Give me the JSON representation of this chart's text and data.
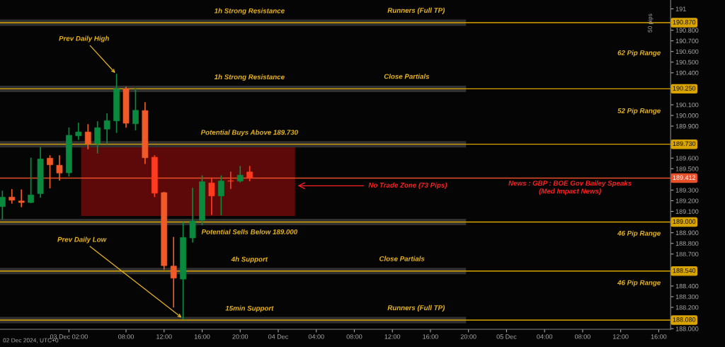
{
  "chart_data": {
    "type": "candlestick",
    "x": [
      "2024-12-02T19:00",
      "2024-12-02T20:00",
      "2024-12-02T21:00",
      "2024-12-02T22:00",
      "2024-12-02T23:00",
      "2024-12-03T00:00",
      "2024-12-03T01:00",
      "2024-12-03T02:00",
      "2024-12-03T03:00",
      "2024-12-03T04:00",
      "2024-12-03T05:00",
      "2024-12-03T06:00",
      "2024-12-03T07:00",
      "2024-12-03T08:00",
      "2024-12-03T09:00",
      "2024-12-03T10:00",
      "2024-12-03T11:00",
      "2024-12-03T12:00",
      "2024-12-03T13:00",
      "2024-12-03T14:00",
      "2024-12-03T15:00",
      "2024-12-03T16:00",
      "2024-12-03T17:00",
      "2024-12-03T18:00",
      "2024-12-03T19:00",
      "2024-12-03T20:00",
      "2024-12-03T21:00"
    ],
    "ohlc": [
      [
        189.145,
        189.289,
        189.028,
        189.234
      ],
      [
        189.234,
        189.304,
        189.178,
        189.205
      ],
      [
        189.198,
        189.3,
        189.145,
        189.183
      ],
      [
        189.183,
        189.599,
        189.183,
        189.254
      ],
      [
        189.267,
        189.699,
        189.234,
        189.592
      ],
      [
        189.599,
        189.621,
        189.322,
        189.537
      ],
      [
        189.533,
        189.621,
        189.395,
        189.46
      ],
      [
        189.462,
        189.882,
        189.433,
        189.814
      ],
      [
        189.809,
        189.927,
        189.776,
        189.845
      ],
      [
        189.845,
        189.913,
        189.688,
        189.736
      ],
      [
        189.736,
        189.94,
        189.648,
        189.885
      ],
      [
        189.872,
        190.015,
        189.736,
        189.951
      ],
      [
        189.949,
        190.385,
        189.842,
        190.248
      ],
      [
        190.248,
        190.264,
        189.891,
        189.927
      ],
      [
        189.922,
        190.248,
        189.865,
        190.048
      ],
      [
        190.046,
        190.119,
        189.55,
        189.603
      ],
      [
        189.608,
        189.621,
        189.24,
        189.271
      ],
      [
        189.276,
        189.278,
        188.558,
        188.591
      ],
      [
        188.587,
        188.855,
        188.204,
        188.474
      ],
      [
        188.465,
        188.995,
        188.093,
        188.855
      ],
      [
        188.851,
        189.316,
        188.813,
        189.01
      ],
      [
        189.017,
        189.433,
        188.975,
        189.378
      ],
      [
        189.367,
        189.411,
        189.072,
        189.245
      ],
      [
        189.245,
        189.433,
        189.068,
        189.385
      ],
      [
        189.387,
        189.467,
        189.316,
        189.383
      ],
      [
        189.384,
        189.521,
        189.377,
        189.44
      ],
      [
        189.47,
        189.521,
        189.388,
        189.412
      ]
    ],
    "colors": [
      "#0a8a3e",
      "#f05a28",
      "#f05a28",
      "#0a8a3e",
      "#0a8a3e",
      "#f05a28",
      "#f05a28",
      "#0a8a3e",
      "#0a8a3e",
      "#f05a28",
      "#0a8a3e",
      "#0a8a3e",
      "#0a8a3e",
      "#f05a28",
      "#0a8a3e",
      "#f05a28",
      "#ff3b1f",
      "#f05a28",
      "#f05a28",
      "#0a8a3e",
      "#0a8a3e",
      "#0a8a3e",
      "#ff3b1f",
      "#0a8a3e",
      "#ff3b1f",
      "#0a8a3e",
      "#ff3b1f"
    ],
    "xlim": [
      "2024-12-02T18:45",
      "2024-12-05T17:15"
    ],
    "xticks": [
      {
        "value": "2024-12-03T02:00",
        "label": "03 Dec 02:00"
      },
      {
        "value": "2024-12-03T08:00",
        "label": "08:00"
      },
      {
        "value": "2024-12-03T12:00",
        "label": "12:00"
      },
      {
        "value": "2024-12-03T16:00",
        "label": "16:00"
      },
      {
        "value": "2024-12-03T20:00",
        "label": "20:00"
      },
      {
        "value": "2024-12-04T00:00",
        "label": "04 Dec"
      },
      {
        "value": "2024-12-04T04:00",
        "label": "04:00"
      },
      {
        "value": "2024-12-04T08:00",
        "label": "08:00"
      },
      {
        "value": "2024-12-04T12:00",
        "label": "12:00"
      },
      {
        "value": "2024-12-04T16:00",
        "label": "16:00"
      },
      {
        "value": "2024-12-04T20:00",
        "label": "20:00"
      },
      {
        "value": "2024-12-05T00:00",
        "label": "05 Dec"
      },
      {
        "value": "2024-12-05T04:00",
        "label": "04:00"
      },
      {
        "value": "2024-12-05T08:00",
        "label": "08:00"
      },
      {
        "value": "2024-12-05T12:00",
        "label": "12:00"
      },
      {
        "value": "2024-12-05T16:00",
        "label": "16:00"
      }
    ],
    "ylim": [
      187.994,
      191.083
    ],
    "yticks": [
      {
        "value": 188.0,
        "label": "188.000"
      },
      {
        "value": 188.2,
        "label": "188.200"
      },
      {
        "value": 188.3,
        "label": "188.300"
      },
      {
        "value": 188.4,
        "label": "188.400"
      },
      {
        "value": 188.7,
        "label": "188.700"
      },
      {
        "value": 188.8,
        "label": "188.800"
      },
      {
        "value": 188.9,
        "label": "188.900"
      },
      {
        "value": 189.1,
        "label": "189.100"
      },
      {
        "value": 189.2,
        "label": "189.200"
      },
      {
        "value": 189.3,
        "label": "189.300"
      },
      {
        "value": 189.5,
        "label": "189.500"
      },
      {
        "value": 189.6,
        "label": "189.600"
      },
      {
        "value": 189.9,
        "label": "189.900"
      },
      {
        "value": 190.0,
        "label": "190.000"
      },
      {
        "value": 190.1,
        "label": "190.100"
      },
      {
        "value": 190.4,
        "label": "190.400"
      },
      {
        "value": 190.5,
        "label": "190.500"
      },
      {
        "value": 190.6,
        "label": "190.600"
      },
      {
        "value": 190.7,
        "label": "190.700"
      },
      {
        "value": 190.8,
        "label": "190.800"
      },
      {
        "value": 191,
        "label": "191"
      }
    ],
    "ref_lines": [
      {
        "axis": "y",
        "value": 190.87,
        "label": "190.870",
        "color": "#d9a400"
      },
      {
        "axis": "y",
        "value": 190.25,
        "label": "190.250",
        "color": "#d9a400"
      },
      {
        "axis": "y",
        "value": 189.73,
        "label": "189.730",
        "color": "#d9a400"
      },
      {
        "axis": "y",
        "value": 189.412,
        "label": "189.412",
        "color": "#e8502a"
      },
      {
        "axis": "y",
        "value": 189.0,
        "label": "189.000",
        "color": "#d9a400"
      },
      {
        "axis": "y",
        "value": 188.54,
        "label": "188.540",
        "color": "#d9a400"
      },
      {
        "axis": "y",
        "value": 188.08,
        "label": "188.080",
        "color": "#d9a400"
      }
    ],
    "bands": [
      {
        "axis": "y",
        "from": 190.84,
        "to": 190.9,
        "label": "1h Strong Resistance",
        "color": "#3a3a3a"
      },
      {
        "axis": "y",
        "from": 190.22,
        "to": 190.28,
        "label": "1h Strong Resistance",
        "color": "#3a3a3a"
      },
      {
        "axis": "y",
        "from": 189.7,
        "to": 189.76,
        "label": "Potential Buys Above 189.730",
        "color": "#3a3a3a"
      },
      {
        "axis": "y",
        "from": 188.97,
        "to": 189.03,
        "label": "Potential Sells Below 189.000",
        "color": "#3a3a3a"
      },
      {
        "axis": "y",
        "from": 188.51,
        "to": 188.57,
        "label": "4h Support",
        "color": "#3a3a3a"
      },
      {
        "axis": "y",
        "from": 188.05,
        "to": 188.11,
        "label": "15min Support",
        "color": "#3a3a3a"
      },
      {
        "axis": "y",
        "from": 189.057,
        "to": 189.701,
        "label": null,
        "color": "#6e0a0a"
      }
    ],
    "annotations": [
      {
        "text": "Prev Daily High",
        "x": "2024-12-03T07:00",
        "y": 190.385
      },
      {
        "text": "Prev Daily Low",
        "x": "2024-12-03T14:00",
        "y": 188.093
      },
      {
        "text": "Runners (Full TP)",
        "x": "2024-12-04T14:30",
        "y": 190.87
      },
      {
        "text": "Close Partials",
        "x": "2024-12-04T13:30",
        "y": 190.25
      },
      {
        "text": "Close Partials",
        "x": "2024-12-04T13:00",
        "y": 188.54
      },
      {
        "text": "Runners (Full TP)",
        "x": "2024-12-04T14:30",
        "y": 188.08
      },
      "No Trade Zone (73 Pips)",
      "62 Pip Range",
      "52 Pip Range",
      "News : GBP : BOE Gov Bailey Speaks\n(Med Impact News)",
      "46 Pip Range",
      "46 Pip Range",
      "02 Dec 2024, UTC+0",
      "50 pips"
    ]
  }
}
